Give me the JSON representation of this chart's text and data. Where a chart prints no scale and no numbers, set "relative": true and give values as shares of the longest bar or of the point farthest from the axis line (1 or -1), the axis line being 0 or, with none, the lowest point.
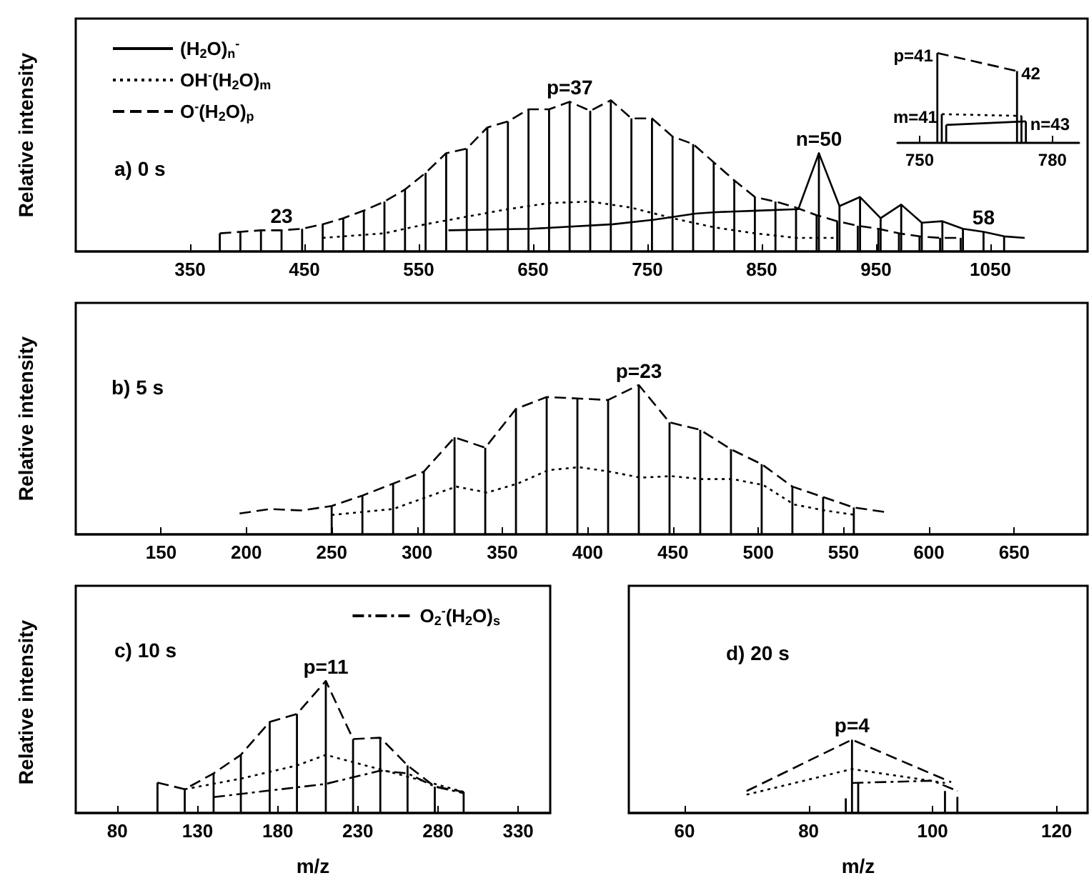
{
  "chart_data": [
    {
      "type": "line",
      "title": "a) 0 s",
      "ylabel": "Relative intensity",
      "relative": true,
      "xlim": [
        250,
        1135
      ],
      "xticks": [
        350,
        450,
        550,
        650,
        750,
        850,
        950,
        1050
      ],
      "grid": false,
      "legend": "top left",
      "marker": "none",
      "annotations": [
        {
          "text": "p=37",
          "x": 682,
          "y": 0.99
        },
        {
          "text": "n=50",
          "x": 900,
          "y": 0.65
        },
        {
          "text": "23",
          "x": 430,
          "y": 0.14
        },
        {
          "text": "58",
          "x": 1044,
          "y": 0.13
        }
      ],
      "series": [
        {
          "type": "bar",
          "color": "#000000",
          "x": [
            376,
            394,
            412,
            430,
            448,
            466,
            484,
            502,
            520,
            538,
            556,
            574,
            592,
            610,
            628,
            646,
            664,
            682,
            700,
            718,
            736,
            754,
            772,
            790,
            808,
            826,
            844,
            862,
            880,
            898,
            900,
            916,
            918,
            934,
            936,
            952,
            954,
            970,
            972,
            988,
            990,
            1006,
            1008,
            1024,
            1026,
            1044,
            1062
          ],
          "values": [
            0.12,
            0.13,
            0.14,
            0.14,
            0.15,
            0.18,
            0.22,
            0.27,
            0.33,
            0.41,
            0.52,
            0.65,
            0.68,
            0.82,
            0.86,
            0.94,
            0.94,
            0.99,
            0.93,
            1.0,
            0.88,
            0.88,
            0.76,
            0.71,
            0.59,
            0.47,
            0.36,
            0.33,
            0.29,
            0.24,
            0.65,
            0.2,
            0.3,
            0.17,
            0.36,
            0.15,
            0.22,
            0.12,
            0.31,
            0.1,
            0.19,
            0.09,
            0.2,
            0.09,
            0.15,
            0.13,
            0.1
          ]
        },
        {
          "name": "(H$_{2}$O)$_{n}$$^{-}$",
          "color": "#000000",
          "line_style": "solid",
          "x": [
            576,
            648,
            720,
            756,
            792,
            810,
            846,
            882,
            900,
            918,
            936,
            954,
            972,
            990,
            1008,
            1026,
            1044,
            1062,
            1080
          ],
          "values": [
            0.14,
            0.15,
            0.18,
            0.21,
            0.25,
            0.26,
            0.27,
            0.28,
            0.65,
            0.3,
            0.36,
            0.22,
            0.31,
            0.19,
            0.2,
            0.15,
            0.13,
            0.1,
            0.09
          ]
        },
        {
          "name": "OH$^{-}$(H$_{2}$O)$_{m}$",
          "color": "#000000",
          "line_style": "dotted",
          "x": [
            466,
            520,
            556,
            592,
            628,
            664,
            700,
            736,
            772,
            808,
            844,
            880,
            916
          ],
          "values": [
            0.09,
            0.12,
            0.18,
            0.23,
            0.28,
            0.32,
            0.33,
            0.29,
            0.22,
            0.16,
            0.12,
            0.09,
            0.09
          ]
        },
        {
          "name": "O$^{-}$(H$_{2}$O)$_{p}$",
          "color": "#000000",
          "line_style": "dashed",
          "x": [
            376,
            394,
            412,
            430,
            448,
            466,
            484,
            502,
            520,
            538,
            556,
            574,
            592,
            610,
            628,
            646,
            664,
            682,
            700,
            718,
            736,
            754,
            772,
            790,
            808,
            826,
            844,
            862,
            880,
            898,
            916,
            934,
            952,
            970,
            988,
            1006,
            1024
          ],
          "values": [
            0.12,
            0.13,
            0.14,
            0.14,
            0.15,
            0.18,
            0.22,
            0.27,
            0.33,
            0.41,
            0.52,
            0.65,
            0.68,
            0.82,
            0.86,
            0.94,
            0.94,
            0.99,
            0.93,
            1.0,
            0.88,
            0.88,
            0.76,
            0.71,
            0.59,
            0.47,
            0.36,
            0.33,
            0.29,
            0.24,
            0.2,
            0.17,
            0.15,
            0.12,
            0.1,
            0.09,
            0.09
          ]
        }
      ]
    },
    {
      "type": "line",
      "relative": true,
      "xlim": [
        745,
        786
      ],
      "xticks": [
        750,
        780
      ],
      "grid": false,
      "marker": "none",
      "annotations": [
        {
          "text": "p=41",
          "x": 754,
          "y": 1.0
        },
        {
          "text": "42",
          "x": 772,
          "y": 0.8
        },
        {
          "text": "m=41",
          "x": 755,
          "y": 0.32
        },
        {
          "text": "n=43",
          "x": 774,
          "y": 0.24
        }
      ],
      "series": [
        {
          "type": "bar",
          "color": "#000000",
          "x": [
            754,
            755,
            756,
            772,
            773,
            774
          ],
          "values": [
            1.0,
            0.32,
            0.2,
            0.8,
            0.3,
            0.24
          ]
        },
        {
          "color": "#000000",
          "line_style": "solid",
          "x": [
            756,
            774
          ],
          "values": [
            0.2,
            0.24
          ]
        },
        {
          "color": "#000000",
          "line_style": "dotted",
          "x": [
            755,
            773
          ],
          "values": [
            0.32,
            0.3
          ]
        },
        {
          "color": "#000000",
          "line_style": "dashed",
          "x": [
            754,
            772
          ],
          "values": [
            1.0,
            0.8
          ]
        }
      ]
    },
    {
      "type": "line",
      "title": "b) 5 s",
      "ylabel": "Relative intensity",
      "relative": true,
      "xlim": [
        100,
        693
      ],
      "xticks": [
        150,
        200,
        250,
        300,
        350,
        400,
        450,
        500,
        550,
        600,
        650
      ],
      "grid": false,
      "marker": "none",
      "annotations": [
        {
          "text": "p=23",
          "x": 430,
          "y": 1.0
        }
      ],
      "series": [
        {
          "type": "bar",
          "color": "#000000",
          "x": [
            250,
            268,
            286,
            304,
            322,
            340,
            358,
            376,
            394,
            412,
            430,
            448,
            466,
            484,
            502,
            520,
            538,
            556
          ],
          "values": [
            0.19,
            0.26,
            0.34,
            0.42,
            0.65,
            0.58,
            0.84,
            0.92,
            0.91,
            0.9,
            1.0,
            0.75,
            0.7,
            0.57,
            0.47,
            0.32,
            0.25,
            0.18
          ]
        },
        {
          "color": "#000000",
          "line_style": "dotted",
          "x": [
            250,
            286,
            323,
            341,
            359,
            377,
            395,
            413,
            431,
            449,
            467,
            485,
            503,
            521,
            539,
            557
          ],
          "values": [
            0.13,
            0.17,
            0.32,
            0.28,
            0.34,
            0.43,
            0.45,
            0.42,
            0.38,
            0.39,
            0.37,
            0.37,
            0.33,
            0.2,
            0.16,
            0.13
          ]
        },
        {
          "color": "#000000",
          "line_style": "dashed",
          "x": [
            196,
            214,
            232,
            250,
            268,
            286,
            304,
            322,
            340,
            358,
            376,
            394,
            412,
            430,
            448,
            466,
            484,
            502,
            520,
            538,
            556,
            574
          ],
          "values": [
            0.14,
            0.17,
            0.16,
            0.19,
            0.26,
            0.34,
            0.42,
            0.65,
            0.58,
            0.84,
            0.92,
            0.91,
            0.9,
            1.0,
            0.75,
            0.7,
            0.57,
            0.47,
            0.32,
            0.25,
            0.18,
            0.15
          ]
        }
      ]
    },
    {
      "type": "line",
      "title": "c) 10 s",
      "ylabel": "Relative intensity",
      "xlabel": "m/z",
      "relative": true,
      "xlim": [
        54,
        350
      ],
      "xticks": [
        80,
        130,
        180,
        230,
        280,
        330
      ],
      "grid": false,
      "legend": "top right",
      "marker": "none",
      "annotations": [
        {
          "text": "p=11",
          "x": 210,
          "y": 1.0
        }
      ],
      "series": [
        {
          "type": "bar",
          "color": "#000000",
          "x": [
            105,
            122,
            140,
            157,
            175,
            192,
            210,
            227,
            244,
            261,
            278,
            296
          ],
          "values": [
            0.23,
            0.18,
            0.3,
            0.44,
            0.69,
            0.75,
            1.0,
            0.56,
            0.57,
            0.36,
            0.2,
            0.16
          ]
        },
        {
          "color": "#000000",
          "line_style": "dotted",
          "x": [
            122,
            157,
            192,
            210,
            244,
            278,
            296
          ],
          "values": [
            0.18,
            0.26,
            0.36,
            0.44,
            0.33,
            0.22,
            0.16
          ]
        },
        {
          "name": "O$_{2}$$^{-}$(H$_{2}$O)$_{s}$",
          "color": "#000000",
          "line_style": "dashdot",
          "x": [
            140,
            175,
            210,
            244,
            261,
            278,
            296
          ],
          "values": [
            0.12,
            0.17,
            0.22,
            0.32,
            0.3,
            0.2,
            0.15
          ]
        },
        {
          "color": "#000000",
          "line_style": "dashed",
          "x": [
            105,
            122,
            140,
            157,
            175,
            192,
            210,
            227,
            244,
            261,
            278,
            296
          ],
          "values": [
            0.23,
            0.18,
            0.3,
            0.44,
            0.69,
            0.75,
            1.0,
            0.56,
            0.57,
            0.36,
            0.2,
            0.16
          ]
        }
      ]
    },
    {
      "type": "line",
      "title": "d) 20 s",
      "xlabel": "m/z",
      "relative": true,
      "xlim": [
        51,
        125
      ],
      "xticks": [
        60,
        80,
        100,
        120
      ],
      "grid": false,
      "marker": "none",
      "annotations": [
        {
          "text": "p=4",
          "x": 87,
          "y": 1.0
        }
      ],
      "series": [
        {
          "type": "bar",
          "color": "#000000",
          "x": [
            86,
            87,
            88,
            102,
            104
          ],
          "values": [
            0.2,
            1.0,
            0.42,
            0.3,
            0.22
          ]
        },
        {
          "color": "#000000",
          "line_style": "dotted",
          "x": [
            70,
            87,
            102
          ],
          "values": [
            0.25,
            0.6,
            0.41
          ]
        },
        {
          "color": "#000000",
          "line_style": "dashdot",
          "x": [
            87,
            100,
            104
          ],
          "values": [
            0.41,
            0.44,
            0.3
          ]
        },
        {
          "color": "#000000",
          "line_style": "dashed",
          "x": [
            70,
            87,
            103
          ],
          "values": [
            0.3,
            1.0,
            0.42
          ]
        }
      ]
    }
  ]
}
